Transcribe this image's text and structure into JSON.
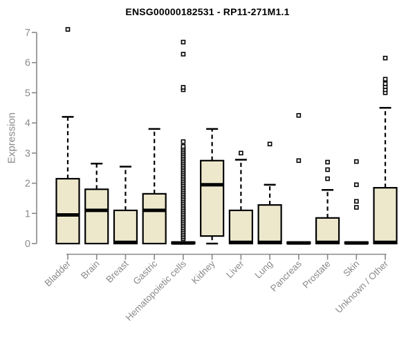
{
  "chart_data": {
    "type": "boxplot",
    "title": "ENSG00000182531 - RP11-271M1.1",
    "ylabel": "Expression",
    "xlabel": "",
    "ylim": [
      0,
      7
    ],
    "yticks": [
      0,
      1,
      2,
      3,
      4,
      5,
      6,
      7
    ],
    "grid": false,
    "legend": "none",
    "colors": {
      "box_fill": "#EDE8CC",
      "box_border": "#000000",
      "median": "#000000",
      "whisker": "#000000",
      "outlier_stroke": "#000000",
      "outlier_fill": "#ffffff",
      "axis": "#878787",
      "tick_label": "#8a8a8a",
      "title": "#000000",
      "background": "#ffffff"
    },
    "categories": [
      "Bladder",
      "Brain",
      "Breast",
      "Gastric",
      "Hematopoietic cells",
      "Kidney",
      "Liver",
      "Lung",
      "Pancreas",
      "Prostate",
      "Skin",
      "Unknown / Other"
    ],
    "series": [
      {
        "category": "Bladder",
        "q1": 0,
        "median": 0.95,
        "q3": 2.15,
        "whisker_low": 0,
        "whisker_high": 4.2,
        "outliers": [
          7.1
        ]
      },
      {
        "category": "Brain",
        "q1": 0,
        "median": 1.1,
        "q3": 1.8,
        "whisker_low": 0,
        "whisker_high": 2.65,
        "outliers": []
      },
      {
        "category": "Breast",
        "q1": 0,
        "median": 0.04,
        "q3": 1.1,
        "whisker_low": 0,
        "whisker_high": 2.55,
        "outliers": []
      },
      {
        "category": "Gastric",
        "q1": 0,
        "median": 1.1,
        "q3": 1.65,
        "whisker_low": 0,
        "whisker_high": 3.8,
        "outliers": []
      },
      {
        "category": "Hematopoietic cells",
        "q1": 0,
        "median": 0.02,
        "q3": 0.05,
        "whisker_low": 0,
        "whisker_high": 0.05,
        "outliers": [
          0.16,
          0.22,
          0.28,
          0.34,
          0.4,
          0.46,
          0.52,
          0.58,
          0.64,
          0.7,
          0.76,
          0.82,
          0.88,
          0.94,
          1.0,
          1.06,
          1.12,
          1.18,
          1.24,
          1.3,
          1.36,
          1.42,
          1.48,
          1.54,
          1.6,
          1.66,
          1.72,
          1.78,
          1.84,
          1.9,
          1.96,
          2.02,
          2.08,
          2.14,
          2.2,
          2.26,
          2.32,
          2.38,
          2.44,
          2.5,
          2.56,
          2.62,
          2.68,
          2.74,
          2.8,
          2.86,
          2.92,
          2.98,
          3.04,
          3.1,
          3.16,
          3.22,
          3.38,
          5.1,
          5.18,
          6.28,
          6.68
        ]
      },
      {
        "category": "Kidney",
        "q1": 0.25,
        "median": 1.95,
        "q3": 2.75,
        "whisker_low": 0,
        "whisker_high": 3.8,
        "outliers": []
      },
      {
        "category": "Liver",
        "q1": 0,
        "median": 0.04,
        "q3": 1.1,
        "whisker_low": 0,
        "whisker_high": 2.78,
        "outliers": [
          3.0
        ]
      },
      {
        "category": "Lung",
        "q1": 0,
        "median": 0.04,
        "q3": 1.28,
        "whisker_low": 0,
        "whisker_high": 1.95,
        "outliers": [
          3.3
        ]
      },
      {
        "category": "Pancreas",
        "q1": 0,
        "median": 0.02,
        "q3": 0.05,
        "whisker_low": 0,
        "whisker_high": 0.05,
        "outliers": [
          2.75,
          4.25
        ]
      },
      {
        "category": "Prostate",
        "q1": 0,
        "median": 0.04,
        "q3": 0.85,
        "whisker_low": 0,
        "whisker_high": 1.78,
        "outliers": [
          2.15,
          2.45,
          2.7
        ]
      },
      {
        "category": "Skin",
        "q1": 0,
        "median": 0.02,
        "q3": 0.05,
        "whisker_low": 0,
        "whisker_high": 0.05,
        "outliers": [
          1.2,
          1.4,
          1.95,
          2.72
        ]
      },
      {
        "category": "Unknown / Other",
        "q1": 0,
        "median": 0.04,
        "q3": 1.85,
        "whisker_low": 0,
        "whisker_high": 4.5,
        "outliers": [
          5.0,
          5.1,
          5.2,
          5.3,
          5.45,
          6.15
        ]
      }
    ]
  }
}
